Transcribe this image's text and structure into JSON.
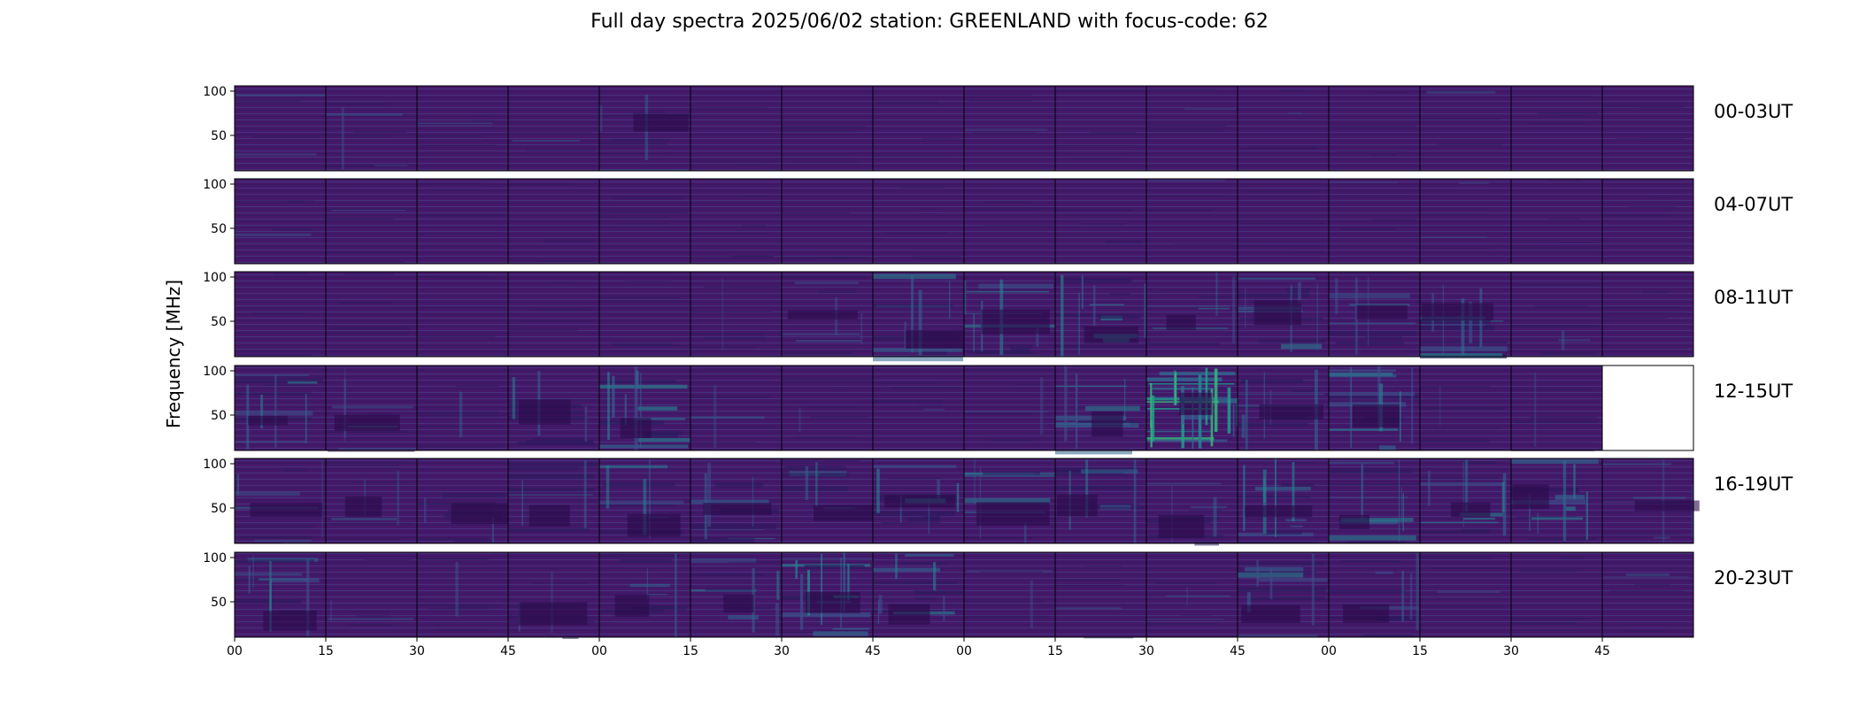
{
  "title": "Full day spectra 2025/06/02 station: GREENLAND with focus-code: 62",
  "ylabel": "Frequency [MHz]",
  "chart_data": {
    "type": "heatmap",
    "title": "Full day spectra 2025/06/02 station: GREENLAND with focus-code: 62",
    "xlabel": "",
    "ylabel": "Frequency [MHz]",
    "y_ticks": [
      "100",
      "50"
    ],
    "x_ticks": [
      "00",
      "15",
      "30",
      "45",
      "00",
      "15",
      "30",
      "45",
      "00",
      "15",
      "30",
      "45",
      "00",
      "15",
      "30",
      "45"
    ],
    "colormap": "viridis",
    "rows": [
      {
        "label": "00-03UT",
        "panels": 16,
        "activity": [
          0.1,
          0.25,
          0.15,
          0.1,
          0.3,
          0.1,
          0.1,
          0.1,
          0.05,
          0.1,
          0.1,
          0.05,
          0.05,
          0.1,
          0.1,
          0.1
        ]
      },
      {
        "label": "04-07UT",
        "panels": 16,
        "activity": [
          0.1,
          0.15,
          0.1,
          0.1,
          0.1,
          0.15,
          0.1,
          0.1,
          0.05,
          0.1,
          0.1,
          0.05,
          0.05,
          0.1,
          0.1,
          0.05
        ]
      },
      {
        "label": "08-11UT",
        "panels": 16,
        "activity": [
          0.05,
          0.05,
          0.05,
          0.05,
          0.15,
          0.2,
          0.3,
          0.45,
          0.5,
          0.55,
          0.3,
          0.45,
          0.4,
          0.55,
          0.2,
          0.15
        ]
      },
      {
        "label": "12-15UT",
        "panels": 15,
        "activity": [
          0.45,
          0.3,
          0.25,
          0.4,
          0.6,
          0.2,
          0.2,
          0.15,
          0.2,
          0.45,
          0.95,
          0.5,
          0.55,
          0.2,
          0.2
        ]
      },
      {
        "label": "16-19UT",
        "panels": 16,
        "activity": [
          0.35,
          0.3,
          0.35,
          0.35,
          0.4,
          0.4,
          0.35,
          0.55,
          0.4,
          0.4,
          0.35,
          0.55,
          0.5,
          0.5,
          0.55,
          0.3
        ]
      },
      {
        "label": "20-23UT",
        "panels": 16,
        "activity": [
          0.5,
          0.2,
          0.2,
          0.3,
          0.35,
          0.4,
          0.65,
          0.5,
          0.2,
          0.15,
          0.2,
          0.45,
          0.4,
          0.15,
          0.15,
          0.15
        ]
      }
    ]
  }
}
